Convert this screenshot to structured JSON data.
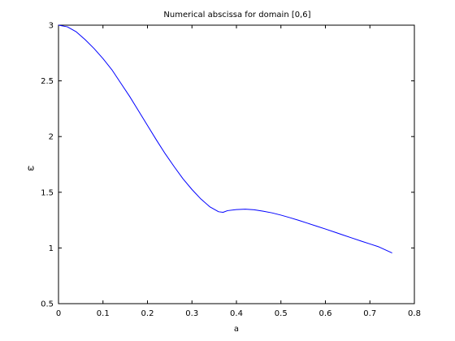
{
  "chart_data": {
    "type": "line",
    "title": "Numerical abscissa for domain [0,6]",
    "xlabel": "a",
    "ylabel": "ω",
    "xlim": [
      0,
      0.8
    ],
    "ylim": [
      0.5,
      3
    ],
    "xticks": [
      0,
      0.1,
      0.2,
      0.3,
      0.4,
      0.5,
      0.6,
      0.7,
      0.8
    ],
    "yticks": [
      0.5,
      1,
      1.5,
      2,
      2.5,
      3
    ],
    "xtick_labels": [
      "0",
      "0.1",
      "0.2",
      "0.3",
      "0.4",
      "0.5",
      "0.6",
      "0.7",
      "0.8"
    ],
    "ytick_labels": [
      "0.5",
      "1",
      "1.5",
      "2",
      "2.5",
      "3"
    ],
    "grid": false,
    "series_color": "#0000ff",
    "series": [
      {
        "x": [
          0,
          0.02,
          0.04,
          0.06,
          0.08,
          0.1,
          0.12,
          0.14,
          0.16,
          0.18,
          0.2,
          0.22,
          0.24,
          0.26,
          0.28,
          0.3,
          0.32,
          0.34,
          0.36,
          0.37,
          0.38,
          0.4,
          0.42,
          0.44,
          0.46,
          0.48,
          0.5,
          0.52,
          0.54,
          0.56,
          0.58,
          0.6,
          0.62,
          0.64,
          0.66,
          0.68,
          0.7,
          0.72,
          0.75
        ],
        "y": [
          3.0,
          2.985,
          2.94,
          2.87,
          2.79,
          2.7,
          2.6,
          2.48,
          2.36,
          2.23,
          2.1,
          1.97,
          1.845,
          1.73,
          1.62,
          1.525,
          1.44,
          1.37,
          1.325,
          1.32,
          1.335,
          1.345,
          1.348,
          1.343,
          1.33,
          1.315,
          1.295,
          1.272,
          1.248,
          1.222,
          1.196,
          1.17,
          1.143,
          1.116,
          1.089,
          1.062,
          1.036,
          1.01,
          0.955
        ]
      }
    ]
  }
}
